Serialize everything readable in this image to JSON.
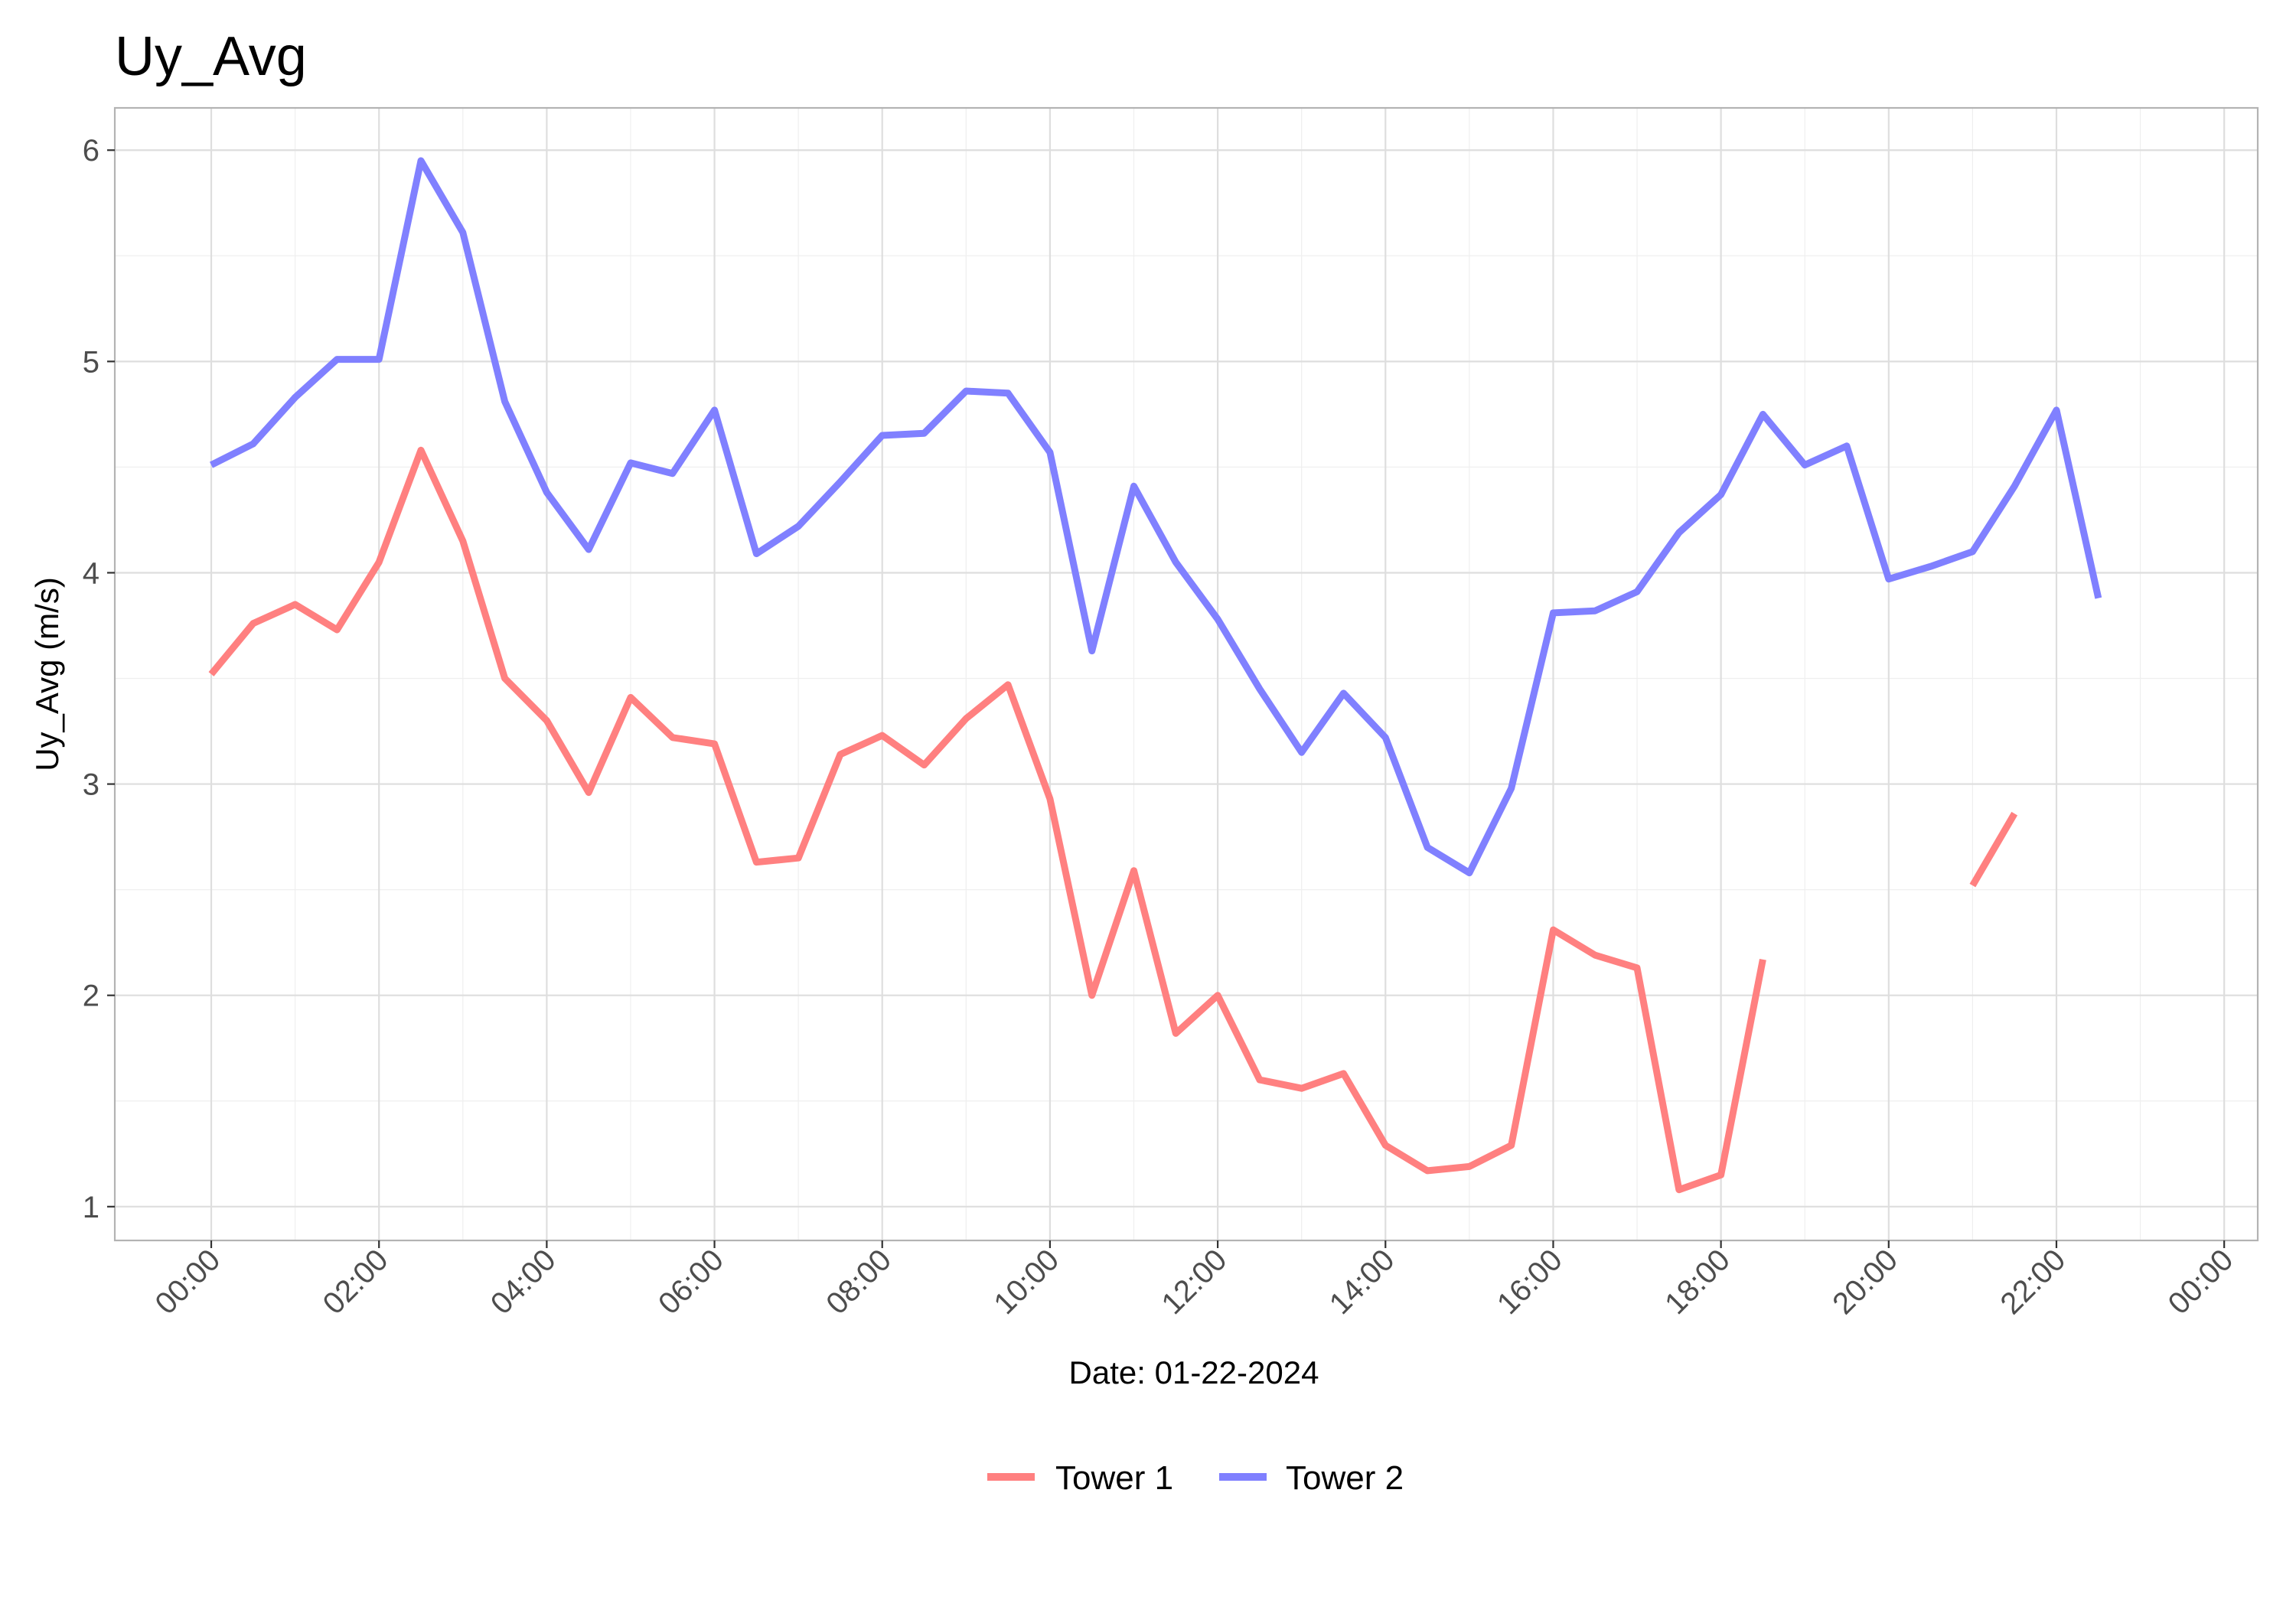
{
  "chart_data": {
    "type": "line",
    "title": "Uy_Avg",
    "xlabel": "Date: 01-22-2024",
    "ylabel": "Uy_Avg (m/s)",
    "x_unit": "hours",
    "xlim": [
      -1.15,
      24.4
    ],
    "ylim": [
      0.84,
      6.2
    ],
    "x_ticks": [
      {
        "value": 0,
        "label": "00:00"
      },
      {
        "value": 2,
        "label": "02:00"
      },
      {
        "value": 4,
        "label": "04:00"
      },
      {
        "value": 6,
        "label": "06:00"
      },
      {
        "value": 8,
        "label": "08:00"
      },
      {
        "value": 10,
        "label": "10:00"
      },
      {
        "value": 12,
        "label": "12:00"
      },
      {
        "value": 14,
        "label": "14:00"
      },
      {
        "value": 16,
        "label": "16:00"
      },
      {
        "value": 18,
        "label": "18:00"
      },
      {
        "value": 20,
        "label": "20:00"
      },
      {
        "value": 22,
        "label": "22:00"
      },
      {
        "value": 24,
        "label": "00:00"
      }
    ],
    "y_ticks": [
      {
        "value": 1,
        "label": "1"
      },
      {
        "value": 2,
        "label": "2"
      },
      {
        "value": 3,
        "label": "3"
      },
      {
        "value": 4,
        "label": "4"
      },
      {
        "value": 5,
        "label": "5"
      },
      {
        "value": 6,
        "label": "6"
      }
    ],
    "grid": true,
    "legend_position": "bottom",
    "series": [
      {
        "name": "Tower 1",
        "color": "#ff8080",
        "x": [
          0,
          0.5,
          1,
          1.5,
          2,
          2.5,
          3,
          3.5,
          4,
          4.5,
          5,
          5.5,
          6,
          6.5,
          7,
          7.5,
          8,
          8.5,
          9,
          9.5,
          10,
          10.5,
          11,
          11.5,
          12,
          12.5,
          13,
          13.5,
          14,
          14.5,
          15,
          15.5,
          16,
          16.5,
          17,
          17.5,
          18,
          18.5,
          19,
          19.5,
          20,
          20.5,
          21,
          21.5,
          22,
          22.5
        ],
        "y": [
          3.52,
          3.76,
          3.85,
          3.73,
          4.05,
          4.58,
          4.15,
          3.5,
          3.3,
          2.96,
          3.41,
          3.22,
          3.19,
          2.63,
          2.65,
          3.14,
          3.23,
          3.09,
          3.31,
          3.47,
          2.93,
          2.0,
          2.59,
          1.82,
          2.0,
          1.6,
          1.56,
          1.63,
          1.29,
          1.17,
          1.19,
          1.29,
          2.31,
          2.19,
          2.13,
          1.08,
          1.15,
          2.17,
          null,
          null,
          null,
          null,
          2.52,
          2.86,
          null,
          null
        ]
      },
      {
        "name": "Tower 2",
        "color": "#8080ff",
        "x": [
          0,
          0.5,
          1,
          1.5,
          2,
          2.5,
          3,
          3.5,
          4,
          4.5,
          5,
          5.5,
          6,
          6.5,
          7,
          7.5,
          8,
          8.5,
          9,
          9.5,
          10,
          10.5,
          11,
          11.5,
          12,
          12.5,
          13,
          13.5,
          14,
          14.5,
          15,
          15.5,
          16,
          16.5,
          17,
          17.5,
          18,
          18.5,
          19,
          19.5,
          20,
          20.5,
          21,
          21.5,
          22,
          22.5
        ],
        "y": [
          4.51,
          4.61,
          4.83,
          5.01,
          5.01,
          5.95,
          5.61,
          4.81,
          4.38,
          4.11,
          4.52,
          4.47,
          4.77,
          4.09,
          4.22,
          4.43,
          4.65,
          4.66,
          4.86,
          4.85,
          4.57,
          3.63,
          4.41,
          4.05,
          3.78,
          3.45,
          3.15,
          3.43,
          3.22,
          2.7,
          2.58,
          2.98,
          3.81,
          3.82,
          3.91,
          4.19,
          4.37,
          4.75,
          4.51,
          4.6,
          3.97,
          4.03,
          4.1,
          4.41,
          4.77,
          3.88
        ]
      }
    ]
  }
}
